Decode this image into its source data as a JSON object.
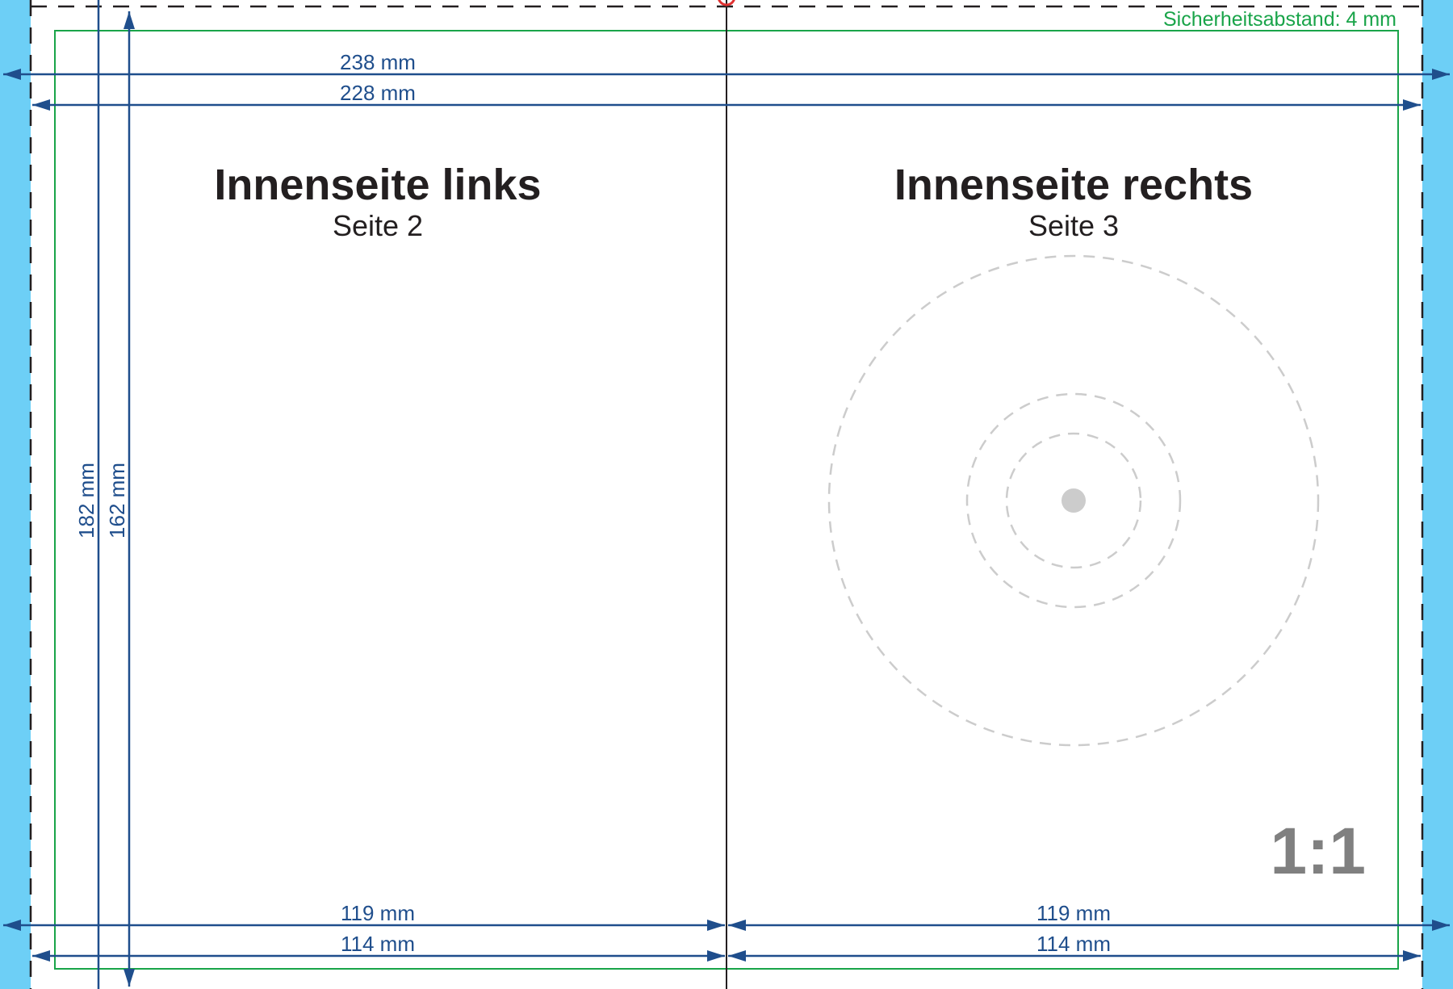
{
  "safety_margin": "Sicherheitsabstand: 4 mm",
  "dimensions": {
    "width_total": "238 mm",
    "width_inner": "228 mm",
    "height_total": "182 mm",
    "height_inner": "162 mm",
    "left_total": "119 mm",
    "left_inner": "114 mm",
    "right_total": "119 mm",
    "right_inner": "114 mm"
  },
  "pages": {
    "left": {
      "title": "Innenseite links",
      "subtitle": "Seite 2"
    },
    "right": {
      "title": "Innenseite rechts",
      "subtitle": "Seite 3"
    }
  },
  "scale_label": "1:1",
  "colors": {
    "background": "#6dcff6",
    "dimension": "#1f4e8c",
    "safety": "#19a449",
    "disc": "#cccccc",
    "scale": "#808080"
  }
}
